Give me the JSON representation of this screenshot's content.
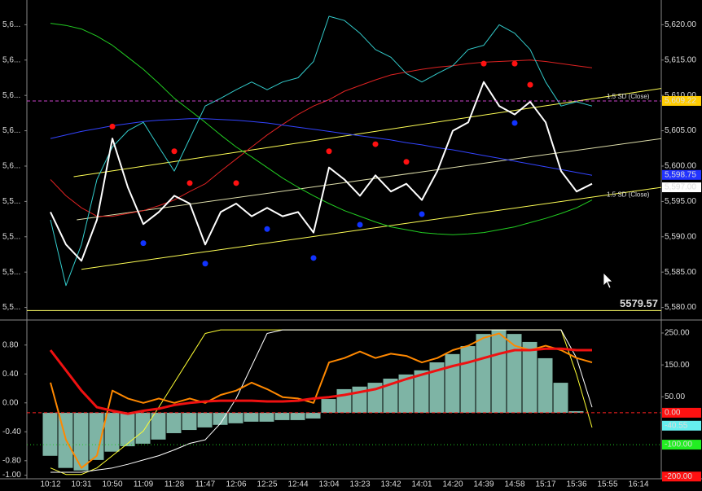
{
  "chart_data": [
    {
      "type": "line",
      "ylim": [
        5578.8,
        5623.5
      ],
      "yticks": [
        {
          "value": 5620,
          "label": "5,6..."
        },
        {
          "value": 5615,
          "label": "5,6..."
        },
        {
          "value": 5610,
          "label": "5,6..."
        },
        {
          "value": 5605,
          "label": "5,6..."
        },
        {
          "value": 5600,
          "label": "5,6..."
        },
        {
          "value": 5595,
          "label": "5,5..."
        },
        {
          "value": 5590,
          "label": "5,5..."
        },
        {
          "value": 5585,
          "label": "5,5..."
        },
        {
          "value": 5580,
          "label": "5,5..."
        }
      ],
      "y2lim": [
        5578.8,
        5623.5
      ],
      "y2ticks": [
        {
          "value": 5620,
          "label": "5,620.00"
        },
        {
          "value": 5615,
          "label": "5,615.00"
        },
        {
          "value": 5610,
          "label": "5,610.00"
        },
        {
          "value": 5605,
          "label": "5,605.00"
        },
        {
          "value": 5600,
          "label": "5,600.00"
        },
        {
          "value": 5595,
          "label": "5,595.00"
        },
        {
          "value": 5590,
          "label": "5,590.00"
        },
        {
          "value": 5585,
          "label": "5,585.00"
        },
        {
          "value": 5580,
          "label": "5,580.00"
        }
      ],
      "series": [
        {
          "color": "#dd2222",
          "width": 1,
          "values": [
            5598.1,
            5595.8,
            5594.1,
            5592.9,
            5592.9,
            5593.3,
            5593.7,
            5594.4,
            5595.2,
            5596.4,
            5597.5,
            5599.3,
            5601.0,
            5602.7,
            5604.4,
            5605.9,
            5607.3,
            5608.5,
            5609.4,
            5610.6,
            5611.4,
            5612.2,
            5612.9,
            5613.3,
            5613.7,
            5614.0,
            5614.2,
            5614.5,
            5614.7,
            5614.8,
            5614.9,
            5615.0,
            5614.8,
            5614.5,
            5614.2,
            5613.9,
            null,
            null,
            null
          ]
        },
        {
          "color": "#22cc22",
          "width": 1,
          "values": [
            5620.2,
            5619.9,
            5619.4,
            5618.4,
            5617.1,
            5615.4,
            5613.7,
            5611.7,
            5609.6,
            5607.9,
            5606.2,
            5604.4,
            5602.7,
            5601.3,
            5599.8,
            5598.3,
            5597.0,
            5595.8,
            5594.7,
            5593.7,
            5592.9,
            5592.1,
            5591.4,
            5591.0,
            5590.6,
            5590.4,
            5590.3,
            5590.4,
            5590.6,
            5591.0,
            5591.4,
            5592.0,
            5592.6,
            5593.3,
            5594.1,
            5595.2,
            null,
            null,
            null
          ]
        },
        {
          "color": "#3344ff",
          "width": 1,
          "values": [
            5603.9,
            5604.4,
            5604.9,
            5605.3,
            5605.7,
            5606.0,
            5606.3,
            5606.5,
            5606.6,
            5606.7,
            5606.7,
            5606.6,
            5606.5,
            5606.3,
            5606.1,
            5605.8,
            5605.5,
            5605.2,
            5604.9,
            5604.6,
            5604.3,
            5604.0,
            5603.7,
            5603.3,
            5603.0,
            5602.6,
            5602.3,
            5601.9,
            5601.5,
            5601.1,
            5600.7,
            5600.3,
            5599.9,
            5599.5,
            5599.1,
            5598.7,
            null,
            null,
            null
          ]
        },
        {
          "color": "#33cccc",
          "width": 1,
          "values": [
            5592.4,
            5583.1,
            5588.9,
            5598.1,
            5602.7,
            5605.0,
            5606.2,
            5602.7,
            5599.3,
            5603.9,
            5608.5,
            5609.6,
            5610.8,
            5611.9,
            5610.8,
            5611.9,
            5612.5,
            5614.8,
            5621.2,
            5620.6,
            5618.8,
            5616.5,
            5615.4,
            5613.1,
            5611.9,
            5613.1,
            5614.2,
            5616.5,
            5617.1,
            5620.0,
            5618.8,
            5616.5,
            5611.9,
            5608.5,
            5609.1,
            5608.5,
            null,
            null,
            null
          ]
        },
        {
          "color": "#ffffff",
          "width": 2,
          "values": [
            5593.5,
            5588.9,
            5586.6,
            5592.4,
            5603.9,
            5597.0,
            5591.8,
            5593.5,
            5595.8,
            5594.7,
            5588.9,
            5593.5,
            5594.7,
            5592.9,
            5594.1,
            5592.9,
            5593.5,
            5590.6,
            5599.8,
            5598.1,
            5595.8,
            5598.7,
            5596.4,
            5597.5,
            5595.2,
            5599.3,
            5605.0,
            5606.2,
            5611.9,
            5608.5,
            5607.3,
            5609.1,
            5606.2,
            5599.3,
            5596.4,
            5597.5,
            null,
            null,
            null
          ]
        },
        {
          "type": "scatter",
          "color": "#ff1111",
          "values": [
            null,
            null,
            null,
            null,
            5605.6,
            null,
            null,
            null,
            5602.1,
            5597.6,
            null,
            null,
            5597.6,
            null,
            null,
            null,
            null,
            null,
            5602.1,
            null,
            null,
            5603.1,
            null,
            5600.6,
            null,
            null,
            null,
            null,
            5614.5,
            null,
            5614.5,
            5611.5,
            null,
            null,
            null,
            null,
            null,
            null,
            null
          ]
        },
        {
          "type": "scatter",
          "color": "#1133ff",
          "values": [
            null,
            null,
            null,
            null,
            null,
            null,
            5589.1,
            null,
            null,
            null,
            5586.2,
            null,
            null,
            null,
            5591.1,
            null,
            null,
            5587.0,
            null,
            null,
            5591.7,
            null,
            null,
            null,
            5593.2,
            null,
            null,
            null,
            null,
            null,
            5606.1,
            null,
            null,
            null,
            null,
            null,
            null,
            null,
            null
          ]
        }
      ],
      "channels": [
        {
          "x": [
            1.5,
            39.5
          ],
          "values": [
            5598.5,
            5611.0
          ],
          "color": "#ffff55",
          "label": "1.5 SD (Close)"
        },
        {
          "x": [
            1.7,
            39.5
          ],
          "values": [
            5592.4,
            5603.9
          ],
          "color": "#ddddaa"
        },
        {
          "x": [
            2.0,
            39.5
          ],
          "values": [
            5585.4,
            5597.0
          ],
          "color": "#ffff55",
          "label": "1.5 SD (Close)"
        }
      ],
      "levels": [
        {
          "value": 5609.22,
          "label": "5,609.22",
          "color": "#cc44cc",
          "line": "dashed",
          "box": "#ffcc00",
          "text_color": "#000000"
        },
        {
          "value": 5598.75,
          "label": "5,598.75",
          "color": "#3344ff",
          "box": "#2233ff",
          "text_color": "#ffffff"
        },
        {
          "value": 5597.0,
          "label": "5,597.00",
          "color": "#ffffff",
          "box": "#ffffff",
          "text_color": "#000000"
        },
        {
          "value": 5579.57,
          "label": "5579.57",
          "color": "#ffff66",
          "line": "solid",
          "text_color": "#dddddd",
          "inside": true
        }
      ]
    },
    {
      "type": "line",
      "categories": [
        "10:12",
        null,
        "10:31",
        null,
        "10:50",
        null,
        "11:09",
        null,
        "11:28",
        null,
        "11:47",
        null,
        "12:06",
        null,
        "12:25",
        null,
        "12:44",
        null,
        "13:04",
        null,
        "13:23",
        null,
        "13:42",
        null,
        "14:01",
        null,
        "14:20",
        null,
        "14:39",
        null,
        "14:58",
        null,
        "15:17",
        null,
        "15:36",
        null,
        "15:55",
        null,
        "16:14"
      ],
      "ylim": [
        -1.05,
        1.09
      ],
      "yticks": [
        {
          "value": 0.8,
          "label": "0.80"
        },
        {
          "value": 0.4,
          "label": "0.40"
        },
        {
          "value": 0,
          "label": "0.00"
        },
        {
          "value": -0.4,
          "label": "-0.40"
        },
        {
          "value": -0.8,
          "label": "-0.80"
        },
        {
          "value": -1,
          "label": "-1.00"
        }
      ],
      "y2lim": [
        -207,
        278
      ],
      "y2ticks": [
        {
          "value": 250,
          "label": "250.00"
        },
        {
          "value": 150,
          "label": "150.00"
        },
        {
          "value": 50,
          "label": "50.00"
        }
      ],
      "series": [
        {
          "type": "bar",
          "axis": "y2",
          "color": "#a8f0dc",
          "values": [
            -135,
            -173,
            -181,
            -148,
            -122,
            -105,
            -97,
            -84,
            -64,
            -54,
            -46,
            -38,
            -33,
            -28,
            -28,
            -23,
            -23,
            -18,
            43,
            74,
            82,
            94,
            107,
            120,
            133,
            158,
            184,
            209,
            247,
            260,
            247,
            222,
            171,
            94,
            5,
            0,
            null,
            null,
            null
          ]
        },
        {
          "color": "#ffff33",
          "width": 1,
          "values": [
            -0.9,
            -0.99,
            -0.99,
            -0.9,
            -0.73,
            -0.56,
            -0.39,
            -0.06,
            0.28,
            0.62,
            0.96,
            1.01,
            1.01,
            1.01,
            1.01,
            1.01,
            1.01,
            1.01,
            1.01,
            1.01,
            1.01,
            1.01,
            1.01,
            1.01,
            1.01,
            1.01,
            1.01,
            1.01,
            1.01,
            1.01,
            1.01,
            1.01,
            1.01,
            1.01,
            0.39,
            -0.34,
            null,
            null,
            null
          ]
        },
        {
          "color": "#ffffff",
          "width": 1,
          "values": [
            -0.96,
            -0.96,
            -0.96,
            -0.93,
            -0.9,
            -0.85,
            -0.79,
            -0.73,
            -0.65,
            -0.56,
            -0.51,
            -0.28,
            0.06,
            0.51,
            0.96,
            1.01,
            1.01,
            1.01,
            1.01,
            1.01,
            1.01,
            1.01,
            1.01,
            1.01,
            1.01,
            1.01,
            1.01,
            1.01,
            1.01,
            1.01,
            1.01,
            1.01,
            1.01,
            1.01,
            0.62,
            -0.06,
            null,
            null,
            null
          ]
        },
        {
          "color": "#ff8800",
          "width": 2,
          "values": [
            0.28,
            -0.51,
            -0.9,
            -0.73,
            0.17,
            0.06,
            0.0,
            0.06,
            0.0,
            0.06,
            0.0,
            0.11,
            0.17,
            0.28,
            0.19,
            0.08,
            0.06,
            0.0,
            0.56,
            0.62,
            0.71,
            0.62,
            0.68,
            0.65,
            0.56,
            0.62,
            0.73,
            0.79,
            0.9,
            0.96,
            0.79,
            0.73,
            0.79,
            0.73,
            0.62,
            0.56,
            null,
            null,
            null
          ]
        },
        {
          "color": "#ee1111",
          "width": 3,
          "values": [
            0.73,
            0.45,
            0.17,
            -0.06,
            -0.11,
            -0.15,
            -0.11,
            -0.08,
            -0.03,
            0.0,
            0.02,
            0.03,
            0.03,
            0.03,
            0.02,
            0.02,
            0.03,
            0.06,
            0.08,
            0.11,
            0.15,
            0.19,
            0.26,
            0.33,
            0.39,
            0.45,
            0.51,
            0.56,
            0.62,
            0.68,
            0.73,
            0.73,
            0.75,
            0.75,
            0.73,
            0.73,
            null,
            null,
            null
          ]
        }
      ],
      "levels": [
        {
          "value": 0,
          "label": "0.00",
          "color": "#ff2222",
          "line": "dashed",
          "box": "#ff1111",
          "text_color": "#ffffff"
        },
        {
          "value": -40.55,
          "label": "-40.55",
          "color": "#66dddd",
          "box": "#66eeee",
          "text_color": "#000000"
        },
        {
          "value": -100,
          "label": "-100.00",
          "color": "#22cc22",
          "line": "dotted",
          "box": "#22ee22",
          "text_color": "#000000"
        },
        {
          "value": -200,
          "label": "-200.00",
          "color": "#ff2222",
          "box": "#ff1111",
          "text_color": "#000000"
        }
      ]
    }
  ]
}
